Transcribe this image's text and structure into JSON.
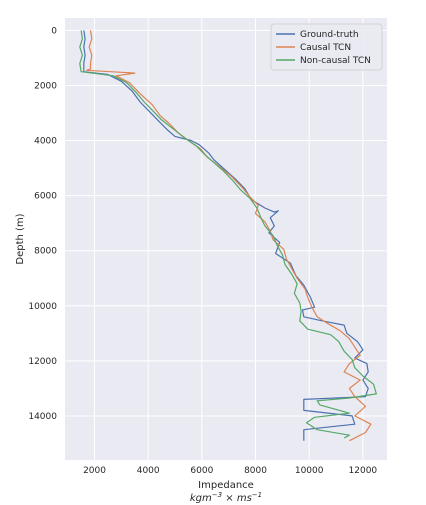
{
  "chart_data": {
    "type": "line",
    "xlabel": "Impedance",
    "xlabel_units_base": "kgm",
    "xlabel_units_exp1": "−3",
    "xlabel_units_mid": " × ms",
    "xlabel_units_exp2": "−1",
    "ylabel": "Depth (m)",
    "xlim": [
      900,
      12900
    ],
    "ylim": [
      15600,
      -450
    ],
    "y_inverted": true,
    "xticks": [
      2000,
      4000,
      6000,
      8000,
      10000,
      12000
    ],
    "xtick_labels": [
      "2000",
      "4000",
      "6000",
      "8000",
      "10000",
      "12000"
    ],
    "yticks": [
      0,
      2000,
      4000,
      6000,
      8000,
      10000,
      12000,
      14000
    ],
    "ytick_labels": [
      "0",
      "2000",
      "4000",
      "6000",
      "8000",
      "10000",
      "12000",
      "14000"
    ],
    "grid": true,
    "legend_position": "top-right",
    "series": [
      {
        "name": "Ground-truth",
        "color": "#4c72b0",
        "points": [
          [
            1600,
            0
          ],
          [
            1650,
            300
          ],
          [
            1600,
            600
          ],
          [
            1650,
            900
          ],
          [
            1600,
            1200
          ],
          [
            1600,
            1500
          ],
          [
            2500,
            1600
          ],
          [
            3000,
            1850
          ],
          [
            3400,
            2200
          ],
          [
            3700,
            2600
          ],
          [
            4000,
            2900
          ],
          [
            4350,
            3250
          ],
          [
            4700,
            3600
          ],
          [
            5000,
            3850
          ],
          [
            5600,
            4000
          ],
          [
            5900,
            4150
          ],
          [
            6250,
            4450
          ],
          [
            6450,
            4700
          ],
          [
            6850,
            5050
          ],
          [
            7250,
            5400
          ],
          [
            7600,
            5750
          ],
          [
            7850,
            6150
          ],
          [
            8350,
            6450
          ],
          [
            8700,
            6600
          ],
          [
            8850,
            6550
          ],
          [
            8550,
            6800
          ],
          [
            8700,
            7100
          ],
          [
            8500,
            7350
          ],
          [
            8900,
            7700
          ],
          [
            8750,
            8100
          ],
          [
            9300,
            8450
          ],
          [
            9500,
            8900
          ],
          [
            9800,
            9250
          ],
          [
            10050,
            9700
          ],
          [
            10200,
            10050
          ],
          [
            9750,
            10150
          ],
          [
            9800,
            10400
          ],
          [
            10500,
            10550
          ],
          [
            11300,
            10700
          ],
          [
            11400,
            11000
          ],
          [
            11800,
            11300
          ],
          [
            12000,
            11600
          ],
          [
            11700,
            11900
          ],
          [
            12150,
            12100
          ],
          [
            12200,
            12400
          ],
          [
            12000,
            12700
          ],
          [
            12200,
            13000
          ],
          [
            12100,
            13300
          ],
          [
            9800,
            13400
          ],
          [
            9800,
            13800
          ],
          [
            11600,
            14000
          ],
          [
            11700,
            14300
          ],
          [
            9800,
            14500
          ],
          [
            9800,
            14900
          ]
        ]
      },
      {
        "name": "Causal TCN",
        "color": "#dd8452",
        "points": [
          [
            1850,
            0
          ],
          [
            1900,
            300
          ],
          [
            1800,
            600
          ],
          [
            1900,
            900
          ],
          [
            1850,
            1200
          ],
          [
            1850,
            1400
          ],
          [
            1700,
            1450
          ],
          [
            3500,
            1550
          ],
          [
            2800,
            1650
          ],
          [
            3300,
            1900
          ],
          [
            3700,
            2300
          ],
          [
            4150,
            2700
          ],
          [
            4450,
            3100
          ],
          [
            4800,
            3400
          ],
          [
            5100,
            3700
          ],
          [
            5500,
            4000
          ],
          [
            5950,
            4300
          ],
          [
            6200,
            4600
          ],
          [
            6600,
            4900
          ],
          [
            7100,
            5300
          ],
          [
            7500,
            5700
          ],
          [
            7800,
            6050
          ],
          [
            8100,
            6350
          ],
          [
            8000,
            6650
          ],
          [
            8350,
            6950
          ],
          [
            8550,
            7300
          ],
          [
            8650,
            7600
          ],
          [
            9050,
            7950
          ],
          [
            9150,
            8300
          ],
          [
            9350,
            8650
          ],
          [
            9550,
            9000
          ],
          [
            9850,
            9400
          ],
          [
            9950,
            9700
          ],
          [
            10100,
            10050
          ],
          [
            10300,
            10400
          ],
          [
            10700,
            10650
          ],
          [
            11150,
            10900
          ],
          [
            11500,
            11200
          ],
          [
            11700,
            11500
          ],
          [
            11900,
            11800
          ],
          [
            11500,
            12100
          ],
          [
            11300,
            12400
          ],
          [
            11900,
            12700
          ],
          [
            11500,
            13000
          ],
          [
            11700,
            13300
          ],
          [
            12100,
            13650
          ],
          [
            11700,
            14000
          ],
          [
            12300,
            14300
          ],
          [
            12100,
            14600
          ],
          [
            11500,
            14900
          ]
        ]
      },
      {
        "name": "Non-causal TCN",
        "color": "#55a868",
        "points": [
          [
            1500,
            0
          ],
          [
            1550,
            300
          ],
          [
            1450,
            600
          ],
          [
            1550,
            900
          ],
          [
            1450,
            1200
          ],
          [
            1500,
            1500
          ],
          [
            2700,
            1650
          ],
          [
            3200,
            1900
          ],
          [
            3550,
            2250
          ],
          [
            3850,
            2600
          ],
          [
            4200,
            2950
          ],
          [
            4500,
            3250
          ],
          [
            4900,
            3550
          ],
          [
            5350,
            3900
          ],
          [
            5800,
            4200
          ],
          [
            6100,
            4500
          ],
          [
            6450,
            4800
          ],
          [
            6800,
            5100
          ],
          [
            7150,
            5450
          ],
          [
            7450,
            5800
          ],
          [
            7800,
            6100
          ],
          [
            8050,
            6450
          ],
          [
            8200,
            6800
          ],
          [
            8350,
            7100
          ],
          [
            8650,
            7450
          ],
          [
            8800,
            7800
          ],
          [
            9000,
            8150
          ],
          [
            9100,
            8500
          ],
          [
            9350,
            8850
          ],
          [
            9550,
            9200
          ],
          [
            9450,
            9550
          ],
          [
            9650,
            9900
          ],
          [
            9700,
            10200
          ],
          [
            9650,
            10550
          ],
          [
            9950,
            10850
          ],
          [
            10800,
            11050
          ],
          [
            11100,
            11300
          ],
          [
            11300,
            11650
          ],
          [
            11600,
            11950
          ],
          [
            11700,
            12250
          ],
          [
            12000,
            12550
          ],
          [
            12400,
            12850
          ],
          [
            12500,
            13200
          ],
          [
            11500,
            13350
          ],
          [
            10300,
            13450
          ],
          [
            10400,
            13600
          ],
          [
            11500,
            13900
          ],
          [
            10200,
            14050
          ],
          [
            9900,
            14250
          ],
          [
            10300,
            14500
          ],
          [
            11500,
            14700
          ],
          [
            11300,
            14800
          ]
        ]
      }
    ]
  }
}
